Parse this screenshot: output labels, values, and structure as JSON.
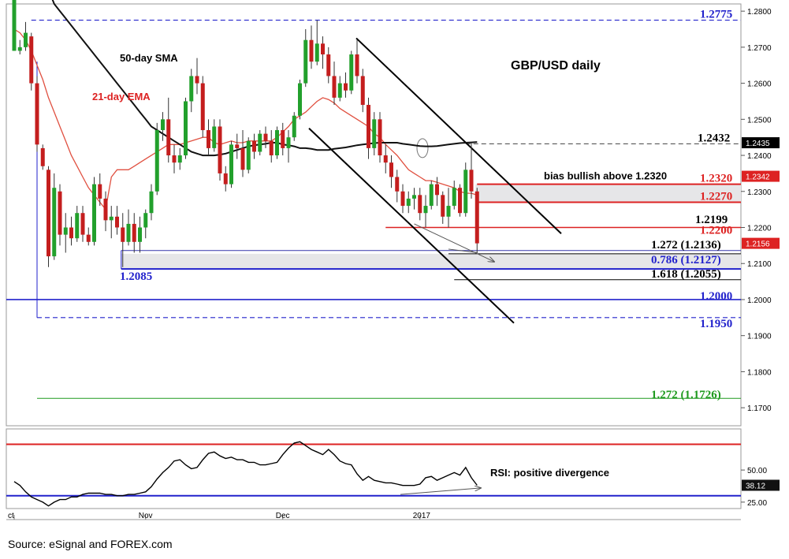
{
  "chart_data": [
    {
      "type": "candlestick",
      "title": "GBP/USD daily",
      "y_axis": {
        "ylim": [
          1.165,
          1.282
        ],
        "ticks": [
          1.28,
          1.27,
          1.26,
          1.25,
          1.24,
          1.23,
          1.22,
          1.21,
          1.2,
          1.19,
          1.18,
          1.17
        ],
        "tick_labels": [
          "1.2800",
          "1.2700",
          "1.2600",
          "1.2500",
          "1.2400",
          "1.2300",
          "1.2200",
          "1.2100",
          "1.2000",
          "1.1900",
          "1.1800",
          "1.1700"
        ]
      },
      "x_axis": {
        "labels": [
          "ct",
          "Nov",
          "Dec",
          "2017"
        ],
        "label_index": [
          0,
          23,
          47,
          71
        ]
      },
      "candles": [
        [
          1.269,
          1.29,
          1.269,
          1.29
        ],
        [
          1.269,
          1.272,
          1.268,
          1.27
        ],
        [
          1.27,
          1.277,
          1.269,
          1.274
        ],
        [
          1.273,
          1.274,
          1.258,
          1.26
        ],
        [
          1.26,
          1.262,
          1.241,
          1.243
        ],
        [
          1.242,
          1.243,
          1.236,
          1.237
        ],
        [
          1.236,
          1.237,
          1.209,
          1.212
        ],
        [
          1.212,
          1.235,
          1.211,
          1.231
        ],
        [
          1.23,
          1.232,
          1.215,
          1.218
        ],
        [
          1.218,
          1.224,
          1.213,
          1.22
        ],
        [
          1.22,
          1.223,
          1.215,
          1.217
        ],
        [
          1.217,
          1.226,
          1.216,
          1.224
        ],
        [
          1.224,
          1.226,
          1.216,
          1.218
        ],
        [
          1.218,
          1.22,
          1.215,
          1.216
        ],
        [
          1.216,
          1.234,
          1.215,
          1.232
        ],
        [
          1.232,
          1.235,
          1.226,
          1.228
        ],
        [
          1.228,
          1.23,
          1.219,
          1.222
        ],
        [
          1.222,
          1.226,
          1.217,
          1.223
        ],
        [
          1.223,
          1.226,
          1.218,
          1.22
        ],
        [
          1.22,
          1.224,
          1.209,
          1.216
        ],
        [
          1.216,
          1.225,
          1.215,
          1.221
        ],
        [
          1.221,
          1.224,
          1.213,
          1.216
        ],
        [
          1.216,
          1.223,
          1.213,
          1.22
        ],
        [
          1.22,
          1.225,
          1.217,
          1.224
        ],
        [
          1.224,
          1.232,
          1.222,
          1.23
        ],
        [
          1.23,
          1.249,
          1.229,
          1.247
        ],
        [
          1.247,
          1.252,
          1.244,
          1.25
        ],
        [
          1.25,
          1.256,
          1.238,
          1.24
        ],
        [
          1.24,
          1.243,
          1.235,
          1.238
        ],
        [
          1.238,
          1.242,
          1.236,
          1.24
        ],
        [
          1.24,
          1.256,
          1.239,
          1.255
        ],
        [
          1.255,
          1.264,
          1.252,
          1.262
        ],
        [
          1.262,
          1.267,
          1.257,
          1.26
        ],
        [
          1.26,
          1.262,
          1.245,
          1.247
        ],
        [
          1.247,
          1.25,
          1.24,
          1.242
        ],
        [
          1.242,
          1.25,
          1.241,
          1.248
        ],
        [
          1.248,
          1.25,
          1.233,
          1.235
        ],
        [
          1.235,
          1.237,
          1.23,
          1.232
        ],
        [
          1.232,
          1.244,
          1.231,
          1.243
        ],
        [
          1.243,
          1.246,
          1.239,
          1.242
        ],
        [
          1.242,
          1.247,
          1.234,
          1.236
        ],
        [
          1.236,
          1.245,
          1.235,
          1.244
        ],
        [
          1.244,
          1.246,
          1.239,
          1.241
        ],
        [
          1.241,
          1.247,
          1.24,
          1.246
        ],
        [
          1.246,
          1.248,
          1.242,
          1.244
        ],
        [
          1.244,
          1.247,
          1.238,
          1.24
        ],
        [
          1.24,
          1.248,
          1.239,
          1.247
        ],
        [
          1.247,
          1.249,
          1.24,
          1.242
        ],
        [
          1.242,
          1.247,
          1.238,
          1.245
        ],
        [
          1.245,
          1.252,
          1.244,
          1.251
        ],
        [
          1.251,
          1.261,
          1.25,
          1.26
        ],
        [
          1.26,
          1.275,
          1.259,
          1.272
        ],
        [
          1.272,
          1.276,
          1.264,
          1.266
        ],
        [
          1.266,
          1.2775,
          1.265,
          1.271
        ],
        [
          1.271,
          1.273,
          1.264,
          1.268
        ],
        [
          1.268,
          1.27,
          1.26,
          1.262
        ],
        [
          1.262,
          1.266,
          1.254,
          1.256
        ],
        [
          1.256,
          1.262,
          1.255,
          1.26
        ],
        [
          1.26,
          1.263,
          1.256,
          1.258
        ],
        [
          1.258,
          1.269,
          1.257,
          1.268
        ],
        [
          1.268,
          1.272,
          1.26,
          1.262
        ],
        [
          1.262,
          1.264,
          1.252,
          1.254
        ],
        [
          1.254,
          1.256,
          1.239,
          1.242
        ],
        [
          1.242,
          1.252,
          1.24,
          1.25
        ],
        [
          1.25,
          1.252,
          1.238,
          1.24
        ],
        [
          1.24,
          1.243,
          1.235,
          1.238
        ],
        [
          1.238,
          1.24,
          1.231,
          1.234
        ],
        [
          1.234,
          1.236,
          1.227,
          1.23
        ],
        [
          1.23,
          1.232,
          1.224,
          1.226
        ],
        [
          1.226,
          1.23,
          1.224,
          1.228
        ],
        [
          1.228,
          1.231,
          1.225,
          1.229
        ],
        [
          1.229,
          1.231,
          1.222,
          1.224
        ],
        [
          1.224,
          1.229,
          1.22,
          1.226
        ],
        [
          1.226,
          1.233,
          1.225,
          1.232
        ],
        [
          1.232,
          1.234,
          1.226,
          1.229
        ],
        [
          1.229,
          1.23,
          1.221,
          1.223
        ],
        [
          1.223,
          1.231,
          1.22,
          1.226
        ],
        [
          1.226,
          1.233,
          1.225,
          1.231
        ],
        [
          1.231,
          1.232,
          1.223,
          1.224
        ],
        [
          1.224,
          1.238,
          1.223,
          1.236
        ],
        [
          1.236,
          1.2435,
          1.228,
          1.23
        ],
        [
          1.23,
          1.231,
          1.213,
          1.2156
        ]
      ],
      "ema21": [
        1.275,
        1.274,
        1.272,
        1.269,
        1.265,
        1.261,
        1.256,
        1.252,
        1.248,
        1.244,
        1.24,
        1.237,
        1.234,
        1.231,
        1.229,
        1.227,
        1.225,
        1.234,
        1.236,
        1.236,
        1.236,
        1.237,
        1.238,
        1.239,
        1.24,
        1.241,
        1.242,
        1.243,
        1.243,
        1.243,
        1.2435,
        1.244,
        1.2445,
        1.245,
        1.245,
        1.2435,
        1.243,
        1.2435,
        1.244,
        1.2435,
        1.2435,
        1.244,
        1.244,
        1.244,
        1.244,
        1.244,
        1.245,
        1.2465,
        1.248,
        1.25,
        1.251,
        1.252,
        1.2535,
        1.255,
        1.256,
        1.2555,
        1.2545,
        1.253,
        1.252,
        1.251,
        1.25,
        1.249,
        1.248,
        1.246,
        1.245,
        1.243,
        1.2415,
        1.24,
        1.238,
        1.236,
        1.235,
        1.234,
        1.233,
        1.233,
        1.2325,
        1.232,
        1.2315,
        1.231,
        1.23,
        1.2295,
        1.2295,
        1.229
      ],
      "sma50": [
        1.31,
        1.306,
        1.302,
        1.298,
        1.294,
        1.29,
        1.286,
        1.282,
        1.28,
        1.278,
        1.276,
        1.274,
        1.272,
        1.27,
        1.268,
        1.266,
        1.264,
        1.262,
        1.26,
        1.258,
        1.256,
        1.254,
        1.252,
        1.25,
        1.248,
        1.247,
        1.246,
        1.245,
        1.244,
        1.243,
        1.242,
        1.241,
        1.2405,
        1.24,
        1.24,
        1.24,
        1.2402,
        1.2405,
        1.241,
        1.2415,
        1.242,
        1.2425,
        1.2428,
        1.243,
        1.2432,
        1.2435,
        1.2435,
        1.243,
        1.2428,
        1.2425,
        1.242,
        1.242,
        1.2418,
        1.2415,
        1.2415,
        1.2415,
        1.2418,
        1.242,
        1.2422,
        1.2425,
        1.2428,
        1.243,
        1.2432,
        1.2434,
        1.2435,
        1.2435,
        1.2435,
        1.2435,
        1.2432,
        1.243,
        1.2428,
        1.2426,
        1.2425,
        1.2425,
        1.2426,
        1.2428,
        1.243,
        1.2432,
        1.2434,
        1.2435,
        1.2436,
        1.2437
      ],
      "labels": {
        "sma": "50-day SMA",
        "ema": "21-day EMA",
        "bias": "bias bullish above 1.2320"
      },
      "levels": [
        {
          "value": 1.2775,
          "label": "1.2775",
          "color": "#2222cc",
          "style": "dashed"
        },
        {
          "value": 1.2432,
          "label": "1.2432",
          "color": "#555555",
          "style": "dashed"
        },
        {
          "value": 1.232,
          "label": "1.2320",
          "color": "#dd2222",
          "style": "solid"
        },
        {
          "value": 1.227,
          "label": "1.2270",
          "color": "#dd2222",
          "style": "solid"
        },
        {
          "value": 1.2199,
          "label": "1.2199",
          "color": "#000000",
          "style": "solid"
        },
        {
          "value": 1.22,
          "label": "1.2200",
          "color": "#dd2222",
          "style": "solid"
        },
        {
          "value": 1.2136,
          "label": "1.272 (1.2136)",
          "color": "#000000",
          "style": "solid"
        },
        {
          "value": 1.2127,
          "label": "0.786 (1.2127)",
          "color": "#2222cc",
          "style": "solid"
        },
        {
          "value": 1.2085,
          "label": "1.2085",
          "color": "#2222cc",
          "style": "solid"
        },
        {
          "value": 1.2055,
          "label": "1.618 (1.2055)",
          "color": "#000000",
          "style": "solid"
        },
        {
          "value": 1.2,
          "label": "1.2000",
          "color": "#2222cc",
          "style": "solid"
        },
        {
          "value": 1.195,
          "label": "1.1950",
          "color": "#2222cc",
          "style": "dashed"
        },
        {
          "value": 1.1726,
          "label": "1.272 (1.1726)",
          "color": "#1f9a1f",
          "style": "solid"
        }
      ],
      "price_tags": [
        {
          "value": 1.2435,
          "label": "1.2435",
          "bg": "#000000",
          "color": "#ffffff"
        },
        {
          "value": 1.2342,
          "label": "1.2342",
          "bg": "#dd2222",
          "color": "#ffffff"
        },
        {
          "value": 1.2156,
          "label": "1.2156",
          "bg": "#dd2222",
          "color": "#ffffff"
        }
      ]
    },
    {
      "type": "line",
      "title": "RSI",
      "annotation": "RSI: positive divergence",
      "ylim": [
        20,
        82
      ],
      "ticks": [
        50,
        25
      ],
      "tick_labels": [
        "50.00",
        "25.00"
      ],
      "levels": [
        {
          "value": 70,
          "color": "#dd2222"
        },
        {
          "value": 30,
          "color": "#2222cc"
        }
      ],
      "values": [
        41,
        38,
        33,
        29,
        27,
        25,
        22,
        25,
        27,
        27,
        29,
        29,
        31,
        32,
        32,
        32,
        31,
        31,
        30,
        30,
        31,
        31,
        32,
        33,
        37,
        43,
        48,
        52,
        57,
        58,
        54,
        51,
        52,
        58,
        63,
        64,
        61,
        59,
        60,
        58,
        58,
        56,
        56,
        54,
        54,
        55,
        56,
        62,
        67,
        71,
        72,
        69,
        66,
        64,
        62,
        66,
        62,
        57,
        55,
        54,
        47,
        42,
        45,
        42,
        41,
        40,
        40,
        39,
        38,
        38,
        38,
        39,
        44,
        45,
        42,
        44,
        46,
        48,
        46,
        52,
        44,
        38.12
      ],
      "current": "38.12"
    }
  ],
  "source": "Source: eSignal and FOREX.com"
}
